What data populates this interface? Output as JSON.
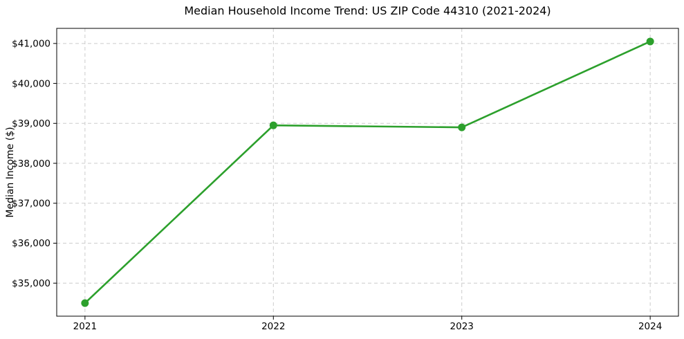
{
  "chart_data": {
    "type": "line",
    "title": "Median Household Income Trend: US ZIP Code 44310 (2021-2024)",
    "xlabel": "",
    "ylabel": "Median Income ($)",
    "x": [
      2021,
      2022,
      2023,
      2024
    ],
    "x_tick_labels": [
      "2021",
      "2022",
      "2023",
      "2024"
    ],
    "y_ticks": [
      35000,
      36000,
      37000,
      38000,
      39000,
      40000,
      41000
    ],
    "y_tick_labels": [
      "$35,000",
      "$36,000",
      "$37,000",
      "$38,000",
      "$39,000",
      "$40,000",
      "$41,000"
    ],
    "series": [
      {
        "name": "Median Household Income",
        "values": [
          34500,
          38950,
          38900,
          41050
        ],
        "color": "#2ca02c",
        "marker": "circle",
        "marker_radius": 5.5,
        "line_width": 2.6
      }
    ],
    "xlim": [
      2020.85,
      2024.15
    ],
    "ylim": [
      34173,
      41378
    ],
    "grid": true,
    "grid_color": "#cccccc",
    "grid_style": "dashed",
    "legend_position": "none",
    "background_color": "#ffffff",
    "axis_color": "#000000"
  }
}
